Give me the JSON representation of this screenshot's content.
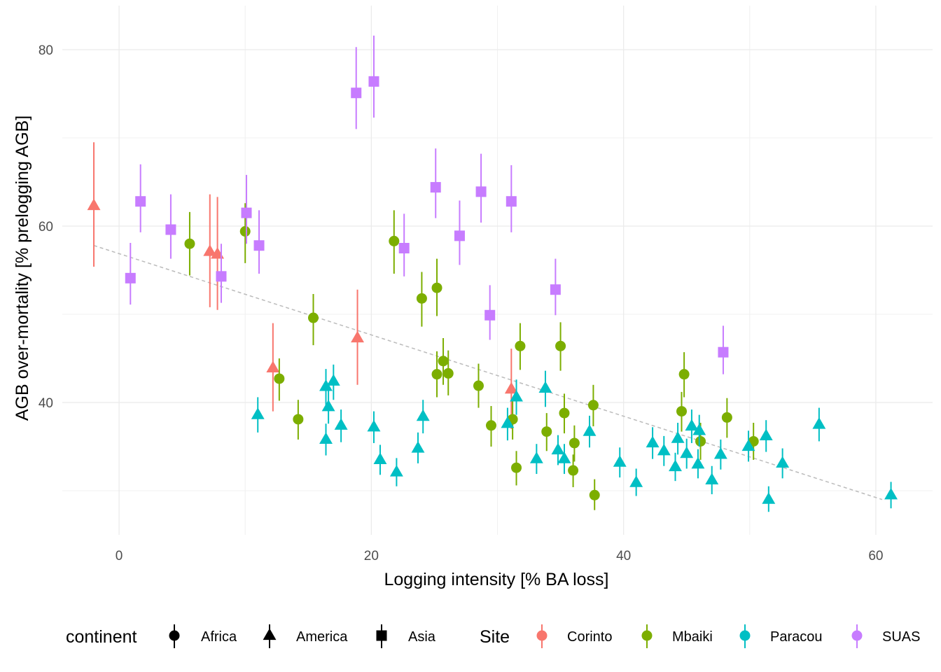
{
  "chart_data": {
    "type": "scatter",
    "title": "",
    "xlabel": "Logging intensity [% BA loss]",
    "ylabel": "AGB over-mortality [% prelogging AGB]",
    "xlim": [
      -4.5,
      64.5
    ],
    "ylim": [
      25,
      85
    ],
    "x_ticks": [
      0,
      20,
      40,
      60
    ],
    "x_tick_labels": [
      "0",
      "20",
      "40",
      "60"
    ],
    "y_ticks": [
      40,
      60,
      80
    ],
    "y_tick_labels": [
      "40",
      "60",
      "80"
    ],
    "grid": true,
    "legend_position": "bottom",
    "legend": {
      "shape_title": "continent",
      "shapes": [
        {
          "label": "Africa",
          "shape": "circle"
        },
        {
          "label": "America",
          "shape": "triangle"
        },
        {
          "label": "Asia",
          "shape": "square"
        }
      ],
      "color_title": "Site",
      "colors": [
        {
          "label": "Corinto",
          "color": "#F8766D"
        },
        {
          "label": "Mbaiki",
          "color": "#7CAE00"
        },
        {
          "label": "Paracou",
          "color": "#00BFC4"
        },
        {
          "label": "SUAS",
          "color": "#C77CFF"
        }
      ]
    },
    "trend_line": {
      "x": [
        -2.0,
        60.5
      ],
      "y": [
        57.8,
        29.0
      ],
      "color": "#bbbbbb",
      "style": "dashed"
    },
    "series": [
      {
        "site": "Corinto",
        "continent": "America",
        "shape": "triangle",
        "color": "#F8766D",
        "points": [
          {
            "x": -2.0,
            "y": 62.3,
            "lo": 55.4,
            "hi": 69.5
          },
          {
            "x": 7.2,
            "y": 57.1,
            "lo": 50.8,
            "hi": 63.6
          },
          {
            "x": 7.8,
            "y": 56.8,
            "lo": 50.5,
            "hi": 63.3
          },
          {
            "x": 12.2,
            "y": 43.9,
            "lo": 39.0,
            "hi": 49.0
          },
          {
            "x": 18.9,
            "y": 47.3,
            "lo": 42.0,
            "hi": 52.8
          },
          {
            "x": 31.1,
            "y": 41.5,
            "lo": 37.0,
            "hi": 46.1
          }
        ]
      },
      {
        "site": "Mbaiki",
        "continent": "Africa",
        "shape": "circle",
        "color": "#7CAE00",
        "points": [
          {
            "x": 5.6,
            "y": 58.0,
            "lo": 54.4,
            "hi": 61.6
          },
          {
            "x": 10.0,
            "y": 59.4,
            "lo": 55.8,
            "hi": 62.6
          },
          {
            "x": 12.7,
            "y": 42.7,
            "lo": 40.2,
            "hi": 45.0
          },
          {
            "x": 14.2,
            "y": 38.1,
            "lo": 35.8,
            "hi": 40.3
          },
          {
            "x": 15.4,
            "y": 49.6,
            "lo": 46.5,
            "hi": 52.3
          },
          {
            "x": 21.8,
            "y": 58.3,
            "lo": 54.6,
            "hi": 61.8
          },
          {
            "x": 24.0,
            "y": 51.8,
            "lo": 48.6,
            "hi": 54.8
          },
          {
            "x": 25.2,
            "y": 53.0,
            "lo": 49.8,
            "hi": 56.3
          },
          {
            "x": 25.2,
            "y": 43.2,
            "lo": 40.6,
            "hi": 45.8
          },
          {
            "x": 25.7,
            "y": 44.7,
            "lo": 42.0,
            "hi": 47.3
          },
          {
            "x": 26.1,
            "y": 43.3,
            "lo": 40.8,
            "hi": 45.9
          },
          {
            "x": 28.5,
            "y": 41.9,
            "lo": 39.4,
            "hi": 44.4
          },
          {
            "x": 29.5,
            "y": 37.4,
            "lo": 35.0,
            "hi": 39.6
          },
          {
            "x": 31.2,
            "y": 38.1,
            "lo": 35.8,
            "hi": 40.3
          },
          {
            "x": 31.5,
            "y": 32.6,
            "lo": 30.6,
            "hi": 34.5
          },
          {
            "x": 31.8,
            "y": 46.4,
            "lo": 43.7,
            "hi": 49.0
          },
          {
            "x": 33.9,
            "y": 36.7,
            "lo": 34.5,
            "hi": 38.8
          },
          {
            "x": 35.0,
            "y": 46.4,
            "lo": 43.6,
            "hi": 49.1
          },
          {
            "x": 35.3,
            "y": 38.8,
            "lo": 36.5,
            "hi": 41.0
          },
          {
            "x": 36.0,
            "y": 32.3,
            "lo": 30.4,
            "hi": 34.1
          },
          {
            "x": 36.1,
            "y": 35.4,
            "lo": 33.3,
            "hi": 37.4
          },
          {
            "x": 37.6,
            "y": 39.7,
            "lo": 37.3,
            "hi": 42.0
          },
          {
            "x": 37.7,
            "y": 29.5,
            "lo": 27.8,
            "hi": 31.3
          },
          {
            "x": 44.6,
            "y": 39.0,
            "lo": 36.7,
            "hi": 41.2
          },
          {
            "x": 44.8,
            "y": 43.2,
            "lo": 40.6,
            "hi": 45.7
          },
          {
            "x": 46.1,
            "y": 35.6,
            "lo": 33.5,
            "hi": 37.7
          },
          {
            "x": 48.2,
            "y": 38.3,
            "lo": 36.0,
            "hi": 40.5
          },
          {
            "x": 50.3,
            "y": 35.6,
            "lo": 33.5,
            "hi": 37.7
          }
        ]
      },
      {
        "site": "Paracou",
        "continent": "America",
        "shape": "triangle",
        "color": "#00BFC4",
        "points": [
          {
            "x": 11.0,
            "y": 38.6,
            "lo": 36.6,
            "hi": 40.6
          },
          {
            "x": 16.4,
            "y": 35.8,
            "lo": 34.0,
            "hi": 37.6
          },
          {
            "x": 16.4,
            "y": 41.8,
            "lo": 39.7,
            "hi": 43.8
          },
          {
            "x": 16.6,
            "y": 39.5,
            "lo": 37.6,
            "hi": 41.5
          },
          {
            "x": 17.0,
            "y": 42.4,
            "lo": 40.3,
            "hi": 44.3
          },
          {
            "x": 17.6,
            "y": 37.4,
            "lo": 35.5,
            "hi": 39.2
          },
          {
            "x": 20.2,
            "y": 37.2,
            "lo": 35.4,
            "hi": 39.0
          },
          {
            "x": 20.7,
            "y": 33.5,
            "lo": 31.8,
            "hi": 35.2
          },
          {
            "x": 22.0,
            "y": 32.1,
            "lo": 30.5,
            "hi": 33.7
          },
          {
            "x": 23.7,
            "y": 34.8,
            "lo": 33.1,
            "hi": 36.6
          },
          {
            "x": 24.1,
            "y": 38.4,
            "lo": 36.5,
            "hi": 40.3
          },
          {
            "x": 30.8,
            "y": 37.6,
            "lo": 35.7,
            "hi": 39.4
          },
          {
            "x": 31.5,
            "y": 40.6,
            "lo": 38.6,
            "hi": 42.6
          },
          {
            "x": 33.1,
            "y": 33.6,
            "lo": 31.9,
            "hi": 35.3
          },
          {
            "x": 33.8,
            "y": 41.6,
            "lo": 39.5,
            "hi": 43.6
          },
          {
            "x": 34.8,
            "y": 34.6,
            "lo": 32.9,
            "hi": 36.3
          },
          {
            "x": 35.3,
            "y": 33.6,
            "lo": 31.9,
            "hi": 35.3
          },
          {
            "x": 37.3,
            "y": 36.7,
            "lo": 34.9,
            "hi": 38.5
          },
          {
            "x": 39.7,
            "y": 33.2,
            "lo": 31.5,
            "hi": 34.9
          },
          {
            "x": 41.0,
            "y": 30.9,
            "lo": 29.4,
            "hi": 32.5
          },
          {
            "x": 42.3,
            "y": 35.4,
            "lo": 33.6,
            "hi": 37.2
          },
          {
            "x": 43.2,
            "y": 34.5,
            "lo": 32.8,
            "hi": 36.2
          },
          {
            "x": 44.1,
            "y": 32.7,
            "lo": 31.1,
            "hi": 34.3
          },
          {
            "x": 44.3,
            "y": 35.9,
            "lo": 34.1,
            "hi": 37.7
          },
          {
            "x": 45.0,
            "y": 34.2,
            "lo": 32.5,
            "hi": 35.9
          },
          {
            "x": 45.4,
            "y": 37.3,
            "lo": 35.4,
            "hi": 39.2
          },
          {
            "x": 45.9,
            "y": 33.0,
            "lo": 31.4,
            "hi": 34.7
          },
          {
            "x": 46.0,
            "y": 36.8,
            "lo": 35.0,
            "hi": 38.6
          },
          {
            "x": 47.0,
            "y": 31.2,
            "lo": 29.6,
            "hi": 32.8
          },
          {
            "x": 47.7,
            "y": 34.1,
            "lo": 32.4,
            "hi": 35.8
          },
          {
            "x": 49.9,
            "y": 35.0,
            "lo": 33.3,
            "hi": 36.8
          },
          {
            "x": 51.3,
            "y": 36.2,
            "lo": 34.4,
            "hi": 38.0
          },
          {
            "x": 51.5,
            "y": 29.0,
            "lo": 27.6,
            "hi": 30.5
          },
          {
            "x": 52.6,
            "y": 33.1,
            "lo": 31.4,
            "hi": 34.8
          },
          {
            "x": 55.5,
            "y": 37.5,
            "lo": 35.6,
            "hi": 39.4
          },
          {
            "x": 61.2,
            "y": 29.5,
            "lo": 28.0,
            "hi": 31.0
          }
        ]
      },
      {
        "site": "SUAS",
        "continent": "Asia",
        "shape": "square",
        "color": "#C77CFF",
        "points": [
          {
            "x": 0.9,
            "y": 54.1,
            "lo": 51.1,
            "hi": 58.1
          },
          {
            "x": 1.7,
            "y": 62.8,
            "lo": 59.3,
            "hi": 67.0
          },
          {
            "x": 4.1,
            "y": 59.6,
            "lo": 56.3,
            "hi": 63.6
          },
          {
            "x": 8.1,
            "y": 54.3,
            "lo": 51.3,
            "hi": 58.0
          },
          {
            "x": 10.1,
            "y": 61.5,
            "lo": 58.0,
            "hi": 65.8
          },
          {
            "x": 11.1,
            "y": 57.8,
            "lo": 54.6,
            "hi": 61.8
          },
          {
            "x": 18.8,
            "y": 75.1,
            "lo": 71.0,
            "hi": 80.3
          },
          {
            "x": 20.2,
            "y": 76.4,
            "lo": 72.3,
            "hi": 81.6
          },
          {
            "x": 22.6,
            "y": 57.5,
            "lo": 54.3,
            "hi": 61.4
          },
          {
            "x": 25.1,
            "y": 64.4,
            "lo": 60.9,
            "hi": 68.8
          },
          {
            "x": 27.0,
            "y": 58.9,
            "lo": 55.6,
            "hi": 62.9
          },
          {
            "x": 28.7,
            "y": 63.9,
            "lo": 60.4,
            "hi": 68.2
          },
          {
            "x": 29.4,
            "y": 49.9,
            "lo": 47.1,
            "hi": 53.3
          },
          {
            "x": 31.1,
            "y": 62.8,
            "lo": 59.3,
            "hi": 66.9
          },
          {
            "x": 34.6,
            "y": 52.8,
            "lo": 49.9,
            "hi": 56.3
          },
          {
            "x": 47.9,
            "y": 45.7,
            "lo": 43.2,
            "hi": 48.7
          }
        ]
      }
    ]
  }
}
